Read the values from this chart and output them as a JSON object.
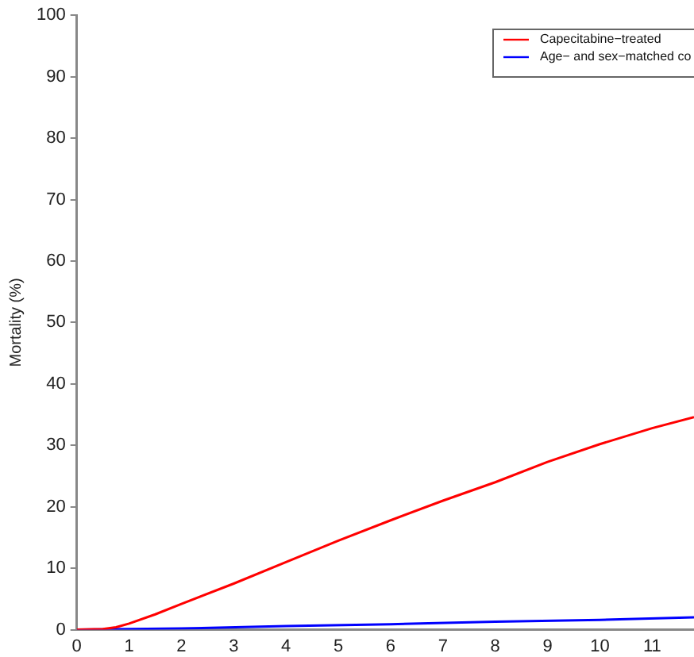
{
  "chart_data": {
    "type": "line",
    "ylabel": "Mortality (%)",
    "xlim": [
      0,
      11.8
    ],
    "xticks": [
      0,
      1,
      2,
      3,
      4,
      5,
      6,
      7,
      8,
      9,
      10,
      11
    ],
    "ylim": [
      0,
      100
    ],
    "yticks": [
      0,
      10,
      20,
      30,
      40,
      50,
      60,
      70,
      80,
      90,
      100
    ],
    "grid": false,
    "legend": "top right",
    "marker": "none",
    "line_style": "solid",
    "series": [
      {
        "name": "Capecitabine−treated",
        "color": "#ff0000",
        "x": [
          0,
          0.5,
          0.75,
          1,
          1.5,
          2,
          3,
          4,
          5,
          6,
          7,
          8,
          9,
          10,
          11,
          11.8
        ],
        "values": [
          0,
          0.1,
          0.4,
          1,
          2.5,
          4.2,
          7.5,
          11,
          14.5,
          17.8,
          21,
          24,
          27.3,
          30.2,
          32.8,
          34.6
        ]
      },
      {
        "name": "Age− and sex−matched co",
        "color": "#0000ff",
        "x": [
          0,
          2,
          4,
          6,
          8,
          10,
          11.8
        ],
        "values": [
          0,
          0.2,
          0.6,
          0.9,
          1.3,
          1.6,
          2
        ]
      }
    ]
  }
}
